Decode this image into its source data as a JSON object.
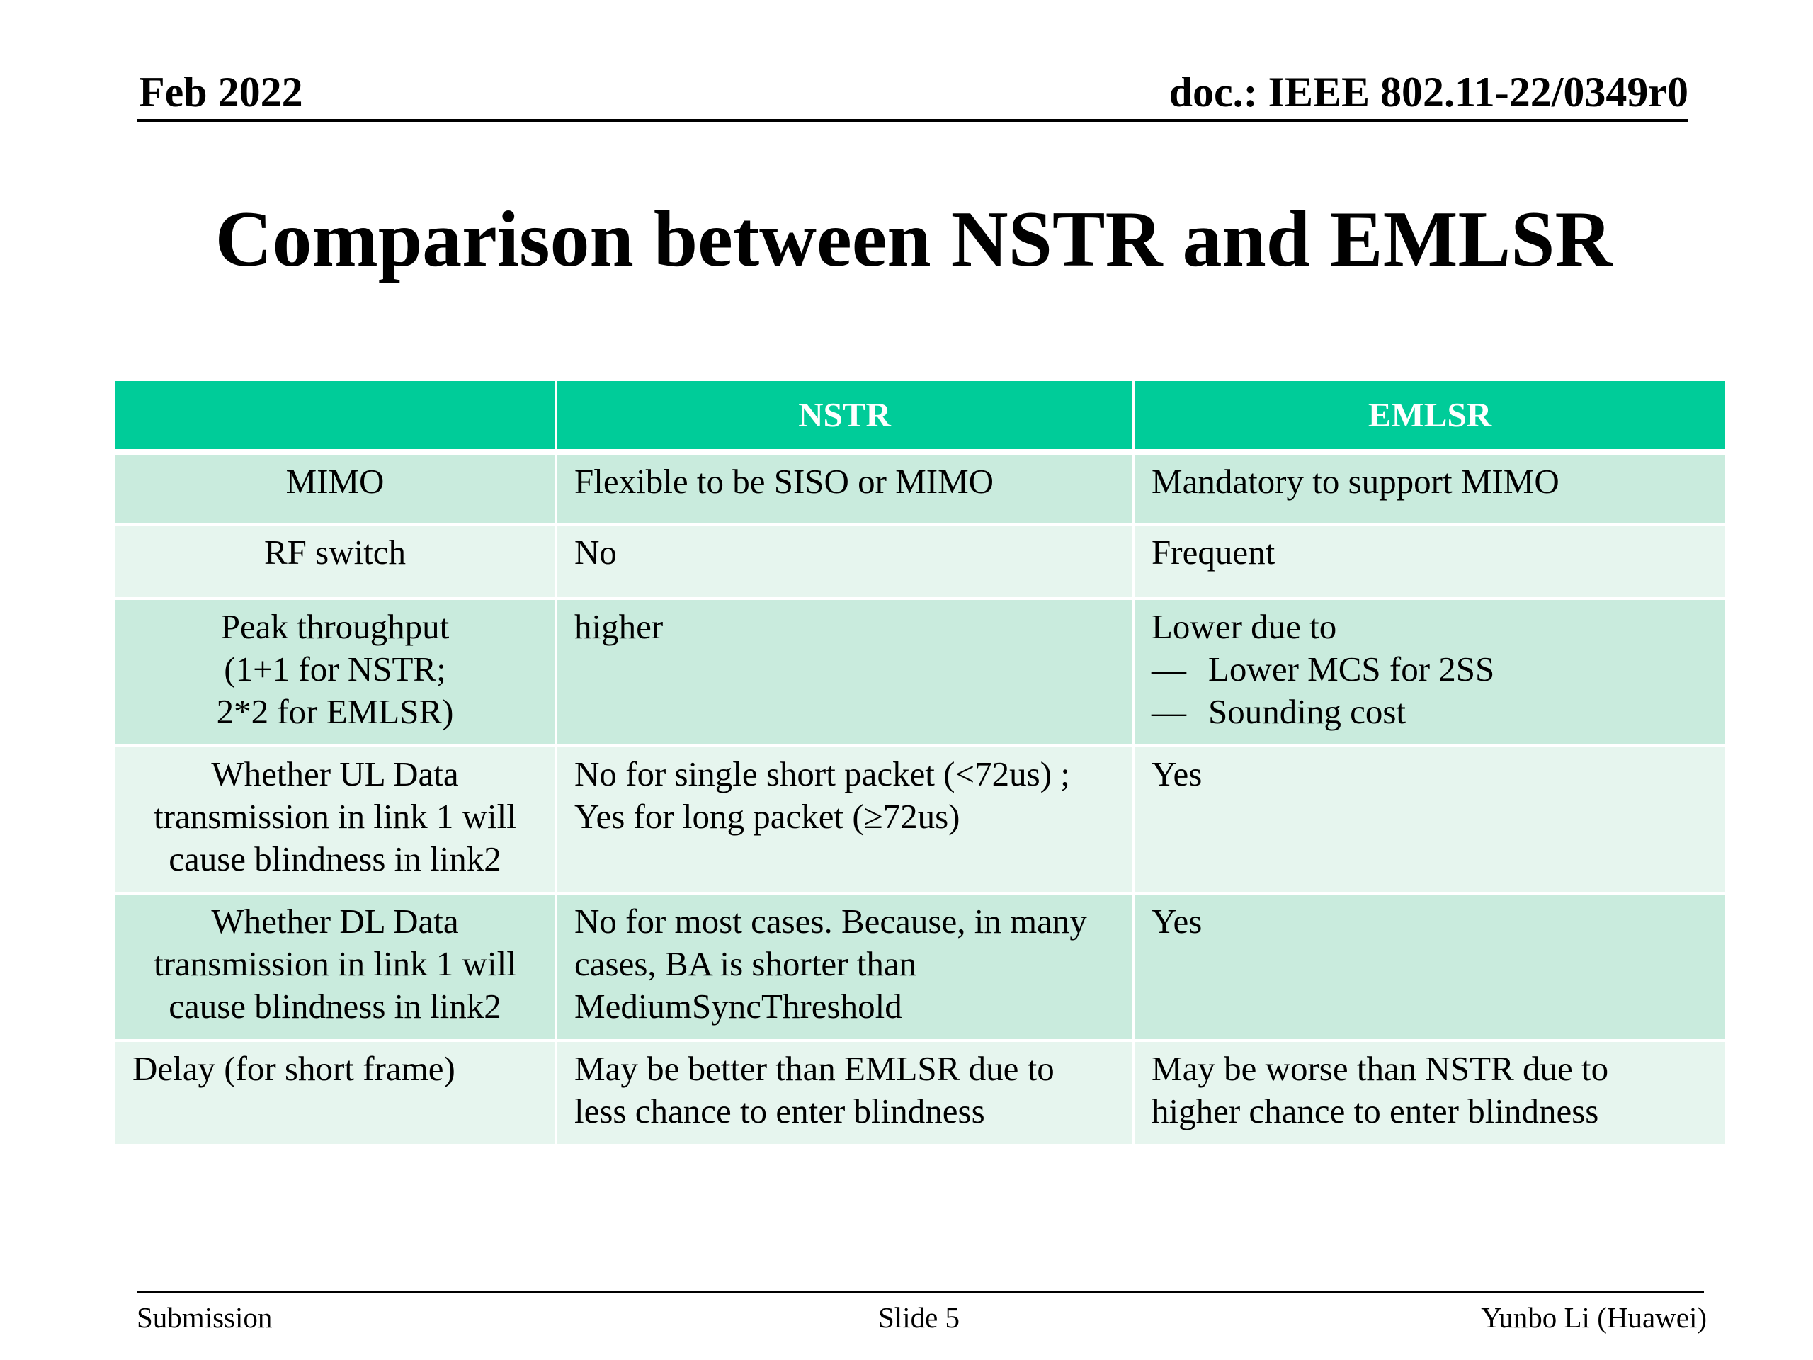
{
  "header": {
    "date": "Feb 2022",
    "doc": "doc.: IEEE 802.11-22/0349r0"
  },
  "title": "Comparison between NSTR and EMLSR",
  "table": {
    "columns": [
      "",
      "NSTR",
      "EMLSR"
    ],
    "rows": [
      {
        "label": [
          "MIMO"
        ],
        "nstr": [
          "Flexible to be SISO or MIMO"
        ],
        "emlsr": [
          "Mandatory to support MIMO"
        ]
      },
      {
        "label": [
          "RF switch"
        ],
        "nstr": [
          "No"
        ],
        "emlsr": [
          "Frequent"
        ]
      },
      {
        "label": [
          "Peak throughput",
          "(1+1 for NSTR;",
          "2*2 for EMLSR)"
        ],
        "nstr": [
          "higher"
        ],
        "emlsr_intro": "Lower due to",
        "emlsr_bullets": [
          "Lower MCS for 2SS",
          "Sounding cost"
        ],
        "bullet_glyph": "—"
      },
      {
        "label": [
          "Whether UL Data",
          "transmission in link 1 will",
          "cause blindness in link2"
        ],
        "nstr": [
          "No for single short packet (<72us) ;",
          "Yes for long packet (≥72us)"
        ],
        "emlsr": [
          "Yes"
        ]
      },
      {
        "label": [
          "Whether DL Data",
          "transmission in link 1 will",
          "cause blindness in link2"
        ],
        "nstr": [
          "No for most cases. Because, in many",
          "cases, BA is shorter than",
          "MediumSyncThreshold"
        ],
        "emlsr": [
          "Yes"
        ]
      },
      {
        "label": [
          "Delay (for short frame)"
        ],
        "nstr": [
          "May be better than EMLSR due to",
          "less chance to enter blindness"
        ],
        "emlsr": [
          "May be worse than NSTR due to",
          "higher chance to enter blindness"
        ]
      }
    ]
  },
  "footer": {
    "left": "Submission",
    "center": "Slide 5",
    "right": "Yunbo Li (Huawei)"
  }
}
